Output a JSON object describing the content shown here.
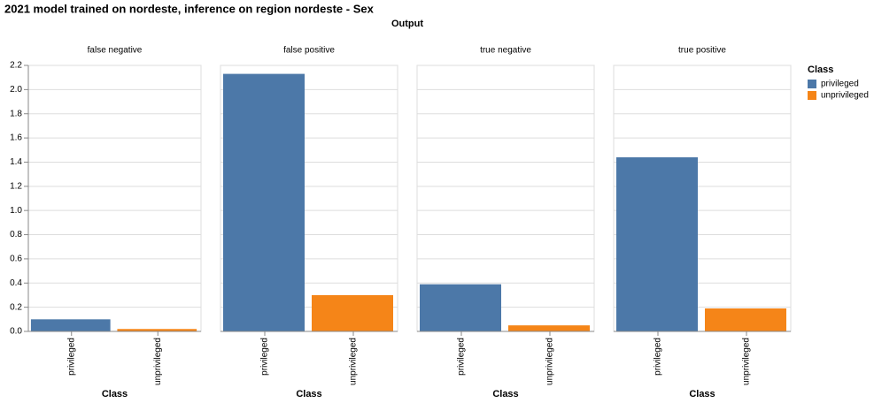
{
  "title": "2021 model trained on nordeste, inference on region nordeste - Sex",
  "facet_title": "Output",
  "x_label": "Class",
  "colors": [
    "#4c78a8",
    "#f58518"
  ],
  "legend": {
    "title": "Class",
    "entries": [
      "privileged",
      "unprivileged"
    ],
    "position": "right"
  },
  "ylim": [
    0,
    2.2
  ],
  "yticks": [
    {
      "value": 0,
      "label": "0.0"
    },
    {
      "value": 0.2,
      "label": "0.2"
    },
    {
      "value": 0.4,
      "label": "0.4"
    },
    {
      "value": 0.6,
      "label": "0.6"
    },
    {
      "value": 0.8,
      "label": "0.8"
    },
    {
      "value": 1,
      "label": "1.0"
    },
    {
      "value": 1.2,
      "label": "1.2"
    },
    {
      "value": 1.4,
      "label": "1.4"
    },
    {
      "value": 1.6,
      "label": "1.6"
    },
    {
      "value": 1.8,
      "label": "1.8"
    },
    {
      "value": 2,
      "label": "2.0"
    },
    {
      "value": 2.2,
      "label": "2.2"
    }
  ],
  "grid": true,
  "chart_data": [
    {
      "type": "bar",
      "title": "false negative",
      "categories": [
        "privileged",
        "unprivileged"
      ],
      "values": [
        0.1,
        0.02
      ]
    },
    {
      "type": "bar",
      "title": "false positive",
      "categories": [
        "privileged",
        "unprivileged"
      ],
      "values": [
        2.13,
        0.3
      ]
    },
    {
      "type": "bar",
      "title": "true negative",
      "categories": [
        "privileged",
        "unprivileged"
      ],
      "values": [
        0.39,
        0.05
      ]
    },
    {
      "type": "bar",
      "title": "true positive",
      "categories": [
        "privileged",
        "unprivileged"
      ],
      "values": [
        1.44,
        0.19
      ]
    }
  ]
}
